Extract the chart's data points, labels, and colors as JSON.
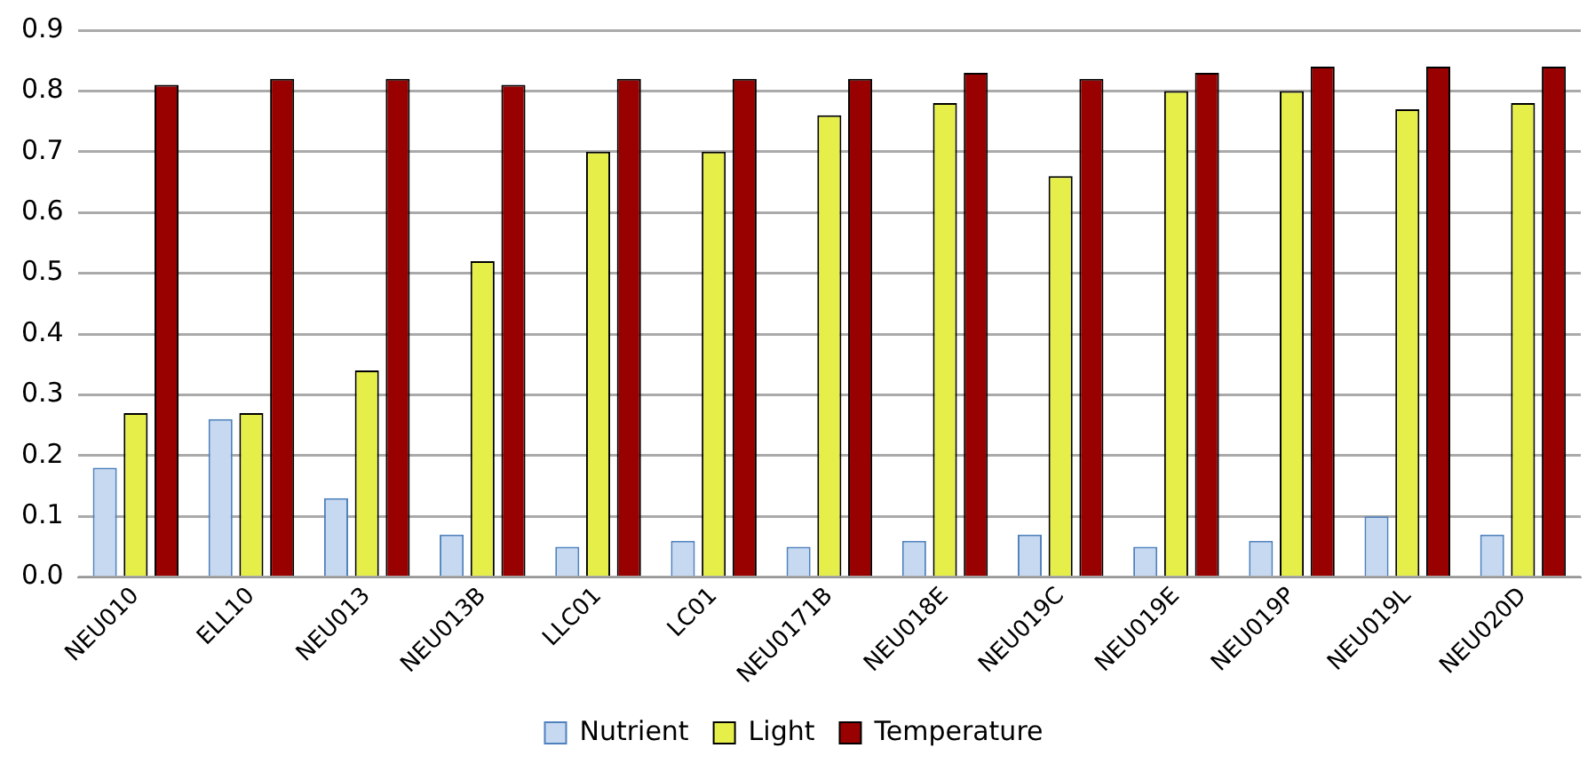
{
  "chart_data": {
    "type": "bar",
    "categories": [
      "NEU010",
      "ELL10",
      "NEU013",
      "NEU013B",
      "LLC01",
      "LC01",
      "NEU0171B",
      "NEU018E",
      "NEU019C",
      "NEU019E",
      "NEU019P",
      "NEU019L",
      "NEU020D"
    ],
    "series": [
      {
        "name": "Nutrient",
        "color": "#c6d9f1",
        "values": [
          0.18,
          0.26,
          0.13,
          0.07,
          0.05,
          0.06,
          0.05,
          0.06,
          0.07,
          0.05,
          0.06,
          0.1,
          0.07
        ]
      },
      {
        "name": "Light",
        "color": "#e6ee4a",
        "values": [
          0.27,
          0.27,
          0.34,
          0.52,
          0.7,
          0.7,
          0.76,
          0.78,
          0.66,
          0.8,
          0.8,
          0.77,
          0.78
        ]
      },
      {
        "name": "Temperature",
        "color": "#990000",
        "values": [
          0.81,
          0.82,
          0.82,
          0.81,
          0.82,
          0.82,
          0.82,
          0.83,
          0.82,
          0.83,
          0.84,
          0.84,
          0.84
        ]
      }
    ],
    "ylim": [
      0,
      0.9
    ],
    "yticks": [
      {
        "value": 0,
        "label": "0.0"
      },
      {
        "value": 0.1,
        "label": "0.1"
      },
      {
        "value": 0.2,
        "label": "0.2"
      },
      {
        "value": 0.3,
        "label": "0.3"
      },
      {
        "value": 0.4,
        "label": "0.4"
      },
      {
        "value": 0.5,
        "label": "0.5"
      },
      {
        "value": 0.6,
        "label": "0.6"
      },
      {
        "value": 0.7,
        "label": "0.7"
      },
      {
        "value": 0.8,
        "label": "0.8"
      },
      {
        "value": 0.9,
        "label": "0.9"
      }
    ],
    "grid": "y",
    "legend": "bottom"
  }
}
